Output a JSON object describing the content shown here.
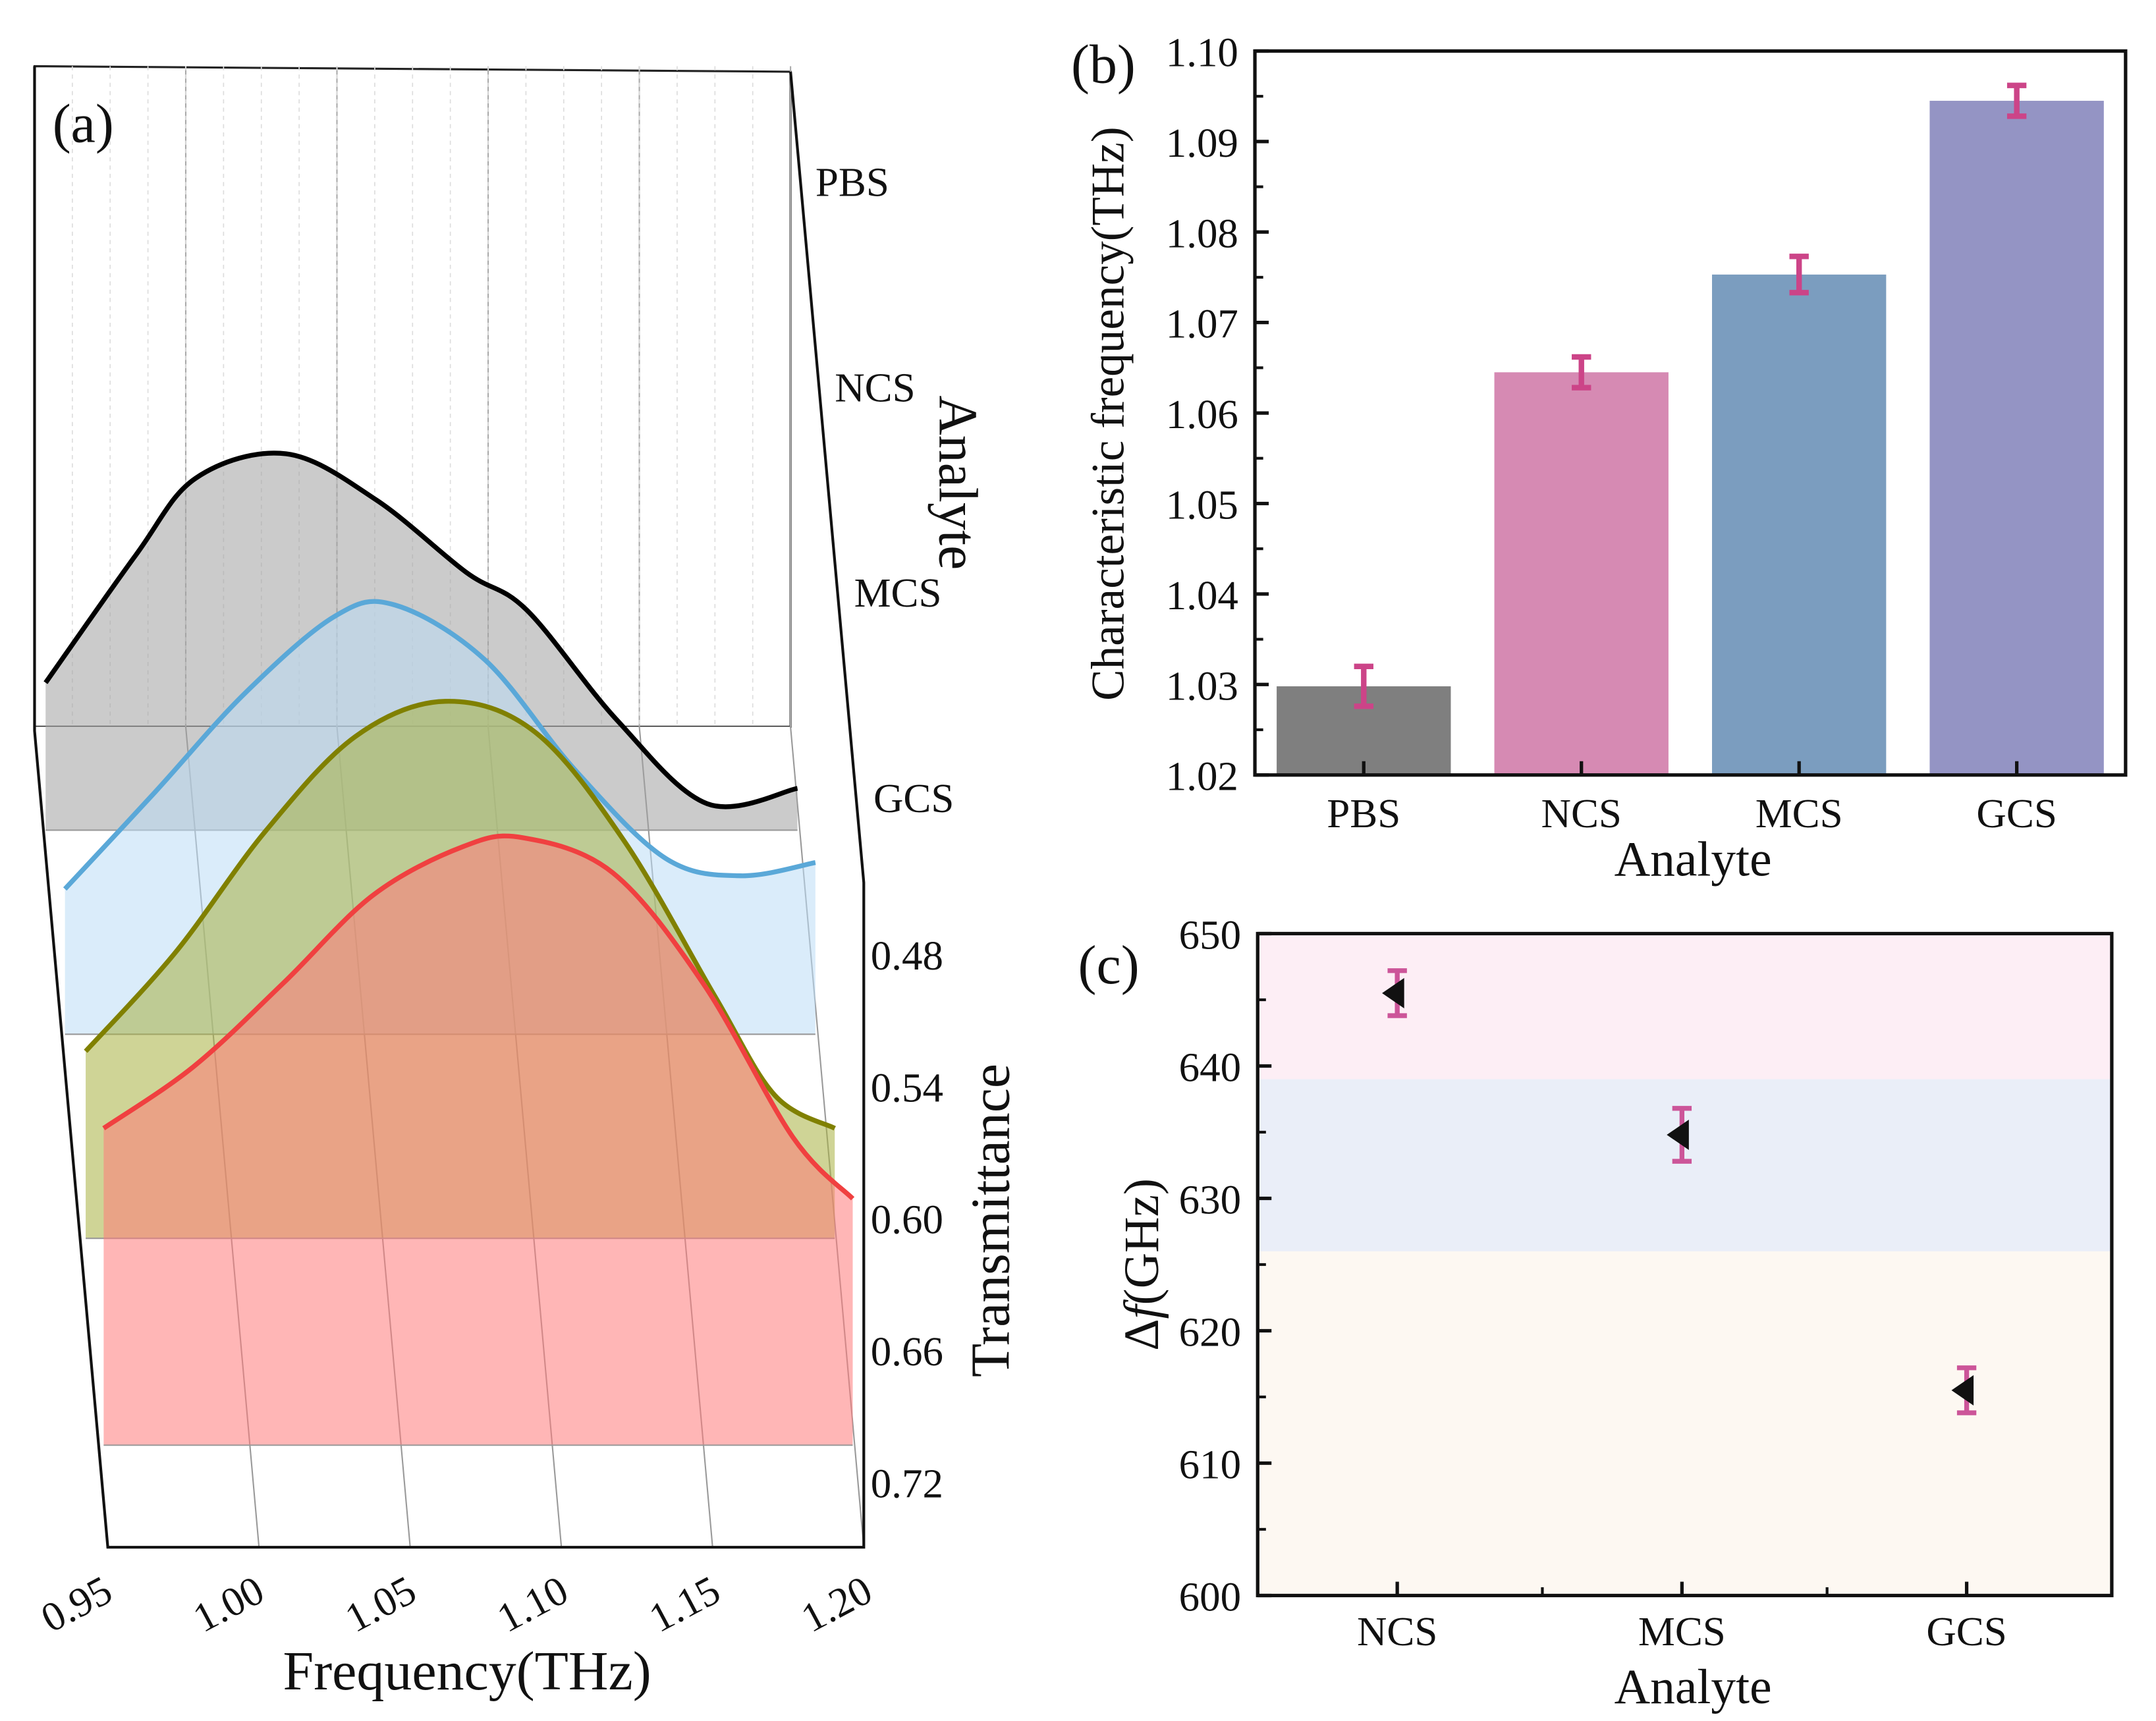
{
  "chart_data": [
    {
      "panel": "(a)",
      "type": "area",
      "title": "",
      "xlabel": "Frequency(THz)",
      "ylabel": "Transmittance",
      "zlabel": "Analyte",
      "xlim": [
        0.95,
        1.2
      ],
      "x_ticks": [
        "0.95",
        "1.00",
        "1.05",
        "1.10",
        "1.15",
        "1.20"
      ],
      "y_ticks": [
        "0.48",
        "0.54",
        "0.60",
        "0.66",
        "0.72"
      ],
      "z_ticks": [
        "PBS",
        "NCS",
        "MCS",
        "GCS"
      ],
      "series": [
        {
          "name": "PBS",
          "line_color": "#000000",
          "fill_color": "#a0a0a0",
          "x": [
            0.95,
            0.98,
            1.0,
            1.03,
            1.06,
            1.09,
            1.11,
            1.14,
            1.17,
            1.2
          ],
          "y": [
            0.633,
            0.575,
            0.54,
            0.529,
            0.55,
            0.583,
            0.6,
            0.65,
            0.688,
            0.681
          ]
        },
        {
          "name": "NCS",
          "line_color": "#5aa8d8",
          "fill_color": "#bcdcf5",
          "x": [
            0.95,
            0.98,
            1.01,
            1.04,
            1.06,
            1.09,
            1.12,
            1.15,
            1.175,
            1.2
          ],
          "y": [
            0.634,
            0.59,
            0.545,
            0.51,
            0.505,
            0.53,
            0.58,
            0.62,
            0.628,
            0.622
          ]
        },
        {
          "name": "MCS",
          "line_color": "#808000",
          "fill_color": "#a8b040",
          "x": [
            0.95,
            0.98,
            1.01,
            1.04,
            1.07,
            1.1,
            1.13,
            1.16,
            1.18,
            1.2
          ],
          "y": [
            0.615,
            0.57,
            0.515,
            0.472,
            0.456,
            0.47,
            0.52,
            0.59,
            0.635,
            0.65
          ]
        },
        {
          "name": "GCS",
          "line_color": "#f04040",
          "fill_color": "#ff7a7a",
          "x": [
            0.95,
            0.98,
            1.01,
            1.04,
            1.07,
            1.09,
            1.12,
            1.15,
            1.18,
            1.2
          ],
          "y": [
            0.556,
            0.528,
            0.49,
            0.45,
            0.428,
            0.424,
            0.44,
            0.49,
            0.56,
            0.588
          ]
        }
      ]
    },
    {
      "panel": "(b)",
      "type": "bar",
      "xlabel": "Analyte",
      "ylabel": "Characteristic frequency(THz)",
      "ylim": [
        1.02,
        1.1
      ],
      "y_ticks": [
        "1.02",
        "1.03",
        "1.04",
        "1.05",
        "1.06",
        "1.07",
        "1.08",
        "1.09",
        "1.10"
      ],
      "categories": [
        "PBS",
        "NCS",
        "MCS",
        "GCS"
      ],
      "values": [
        1.0298,
        1.0645,
        1.0753,
        1.0945
      ],
      "errors": [
        0.0022,
        0.0017,
        0.002,
        0.0017
      ],
      "colors": [
        "#7f7f7f",
        "#d68ab3",
        "#7b9dbf",
        "#9494c4"
      ],
      "error_color": "#cc4488"
    },
    {
      "panel": "(c)",
      "type": "scatter",
      "xlabel": "Analyte",
      "ylabel_prefix": "Δ",
      "ylabel_italic": "f",
      "ylabel_suffix": "(GHz)",
      "ylim": [
        600,
        650
      ],
      "y_ticks": [
        "600",
        "610",
        "620",
        "630",
        "640",
        "650"
      ],
      "categories": [
        "NCS",
        "MCS",
        "GCS"
      ],
      "values": [
        645.5,
        634.8,
        615.5
      ],
      "errors": [
        1.7,
        2.0,
        1.7
      ],
      "bands": [
        {
          "from": 639,
          "to": 650,
          "color": "#fdeef5"
        },
        {
          "from": 626,
          "to": 639,
          "color": "#eaeef8"
        },
        {
          "from": 600,
          "to": 626,
          "color": "#fdf8f2"
        }
      ],
      "marker_color": "#111111",
      "error_color": "#cc5599"
    }
  ]
}
